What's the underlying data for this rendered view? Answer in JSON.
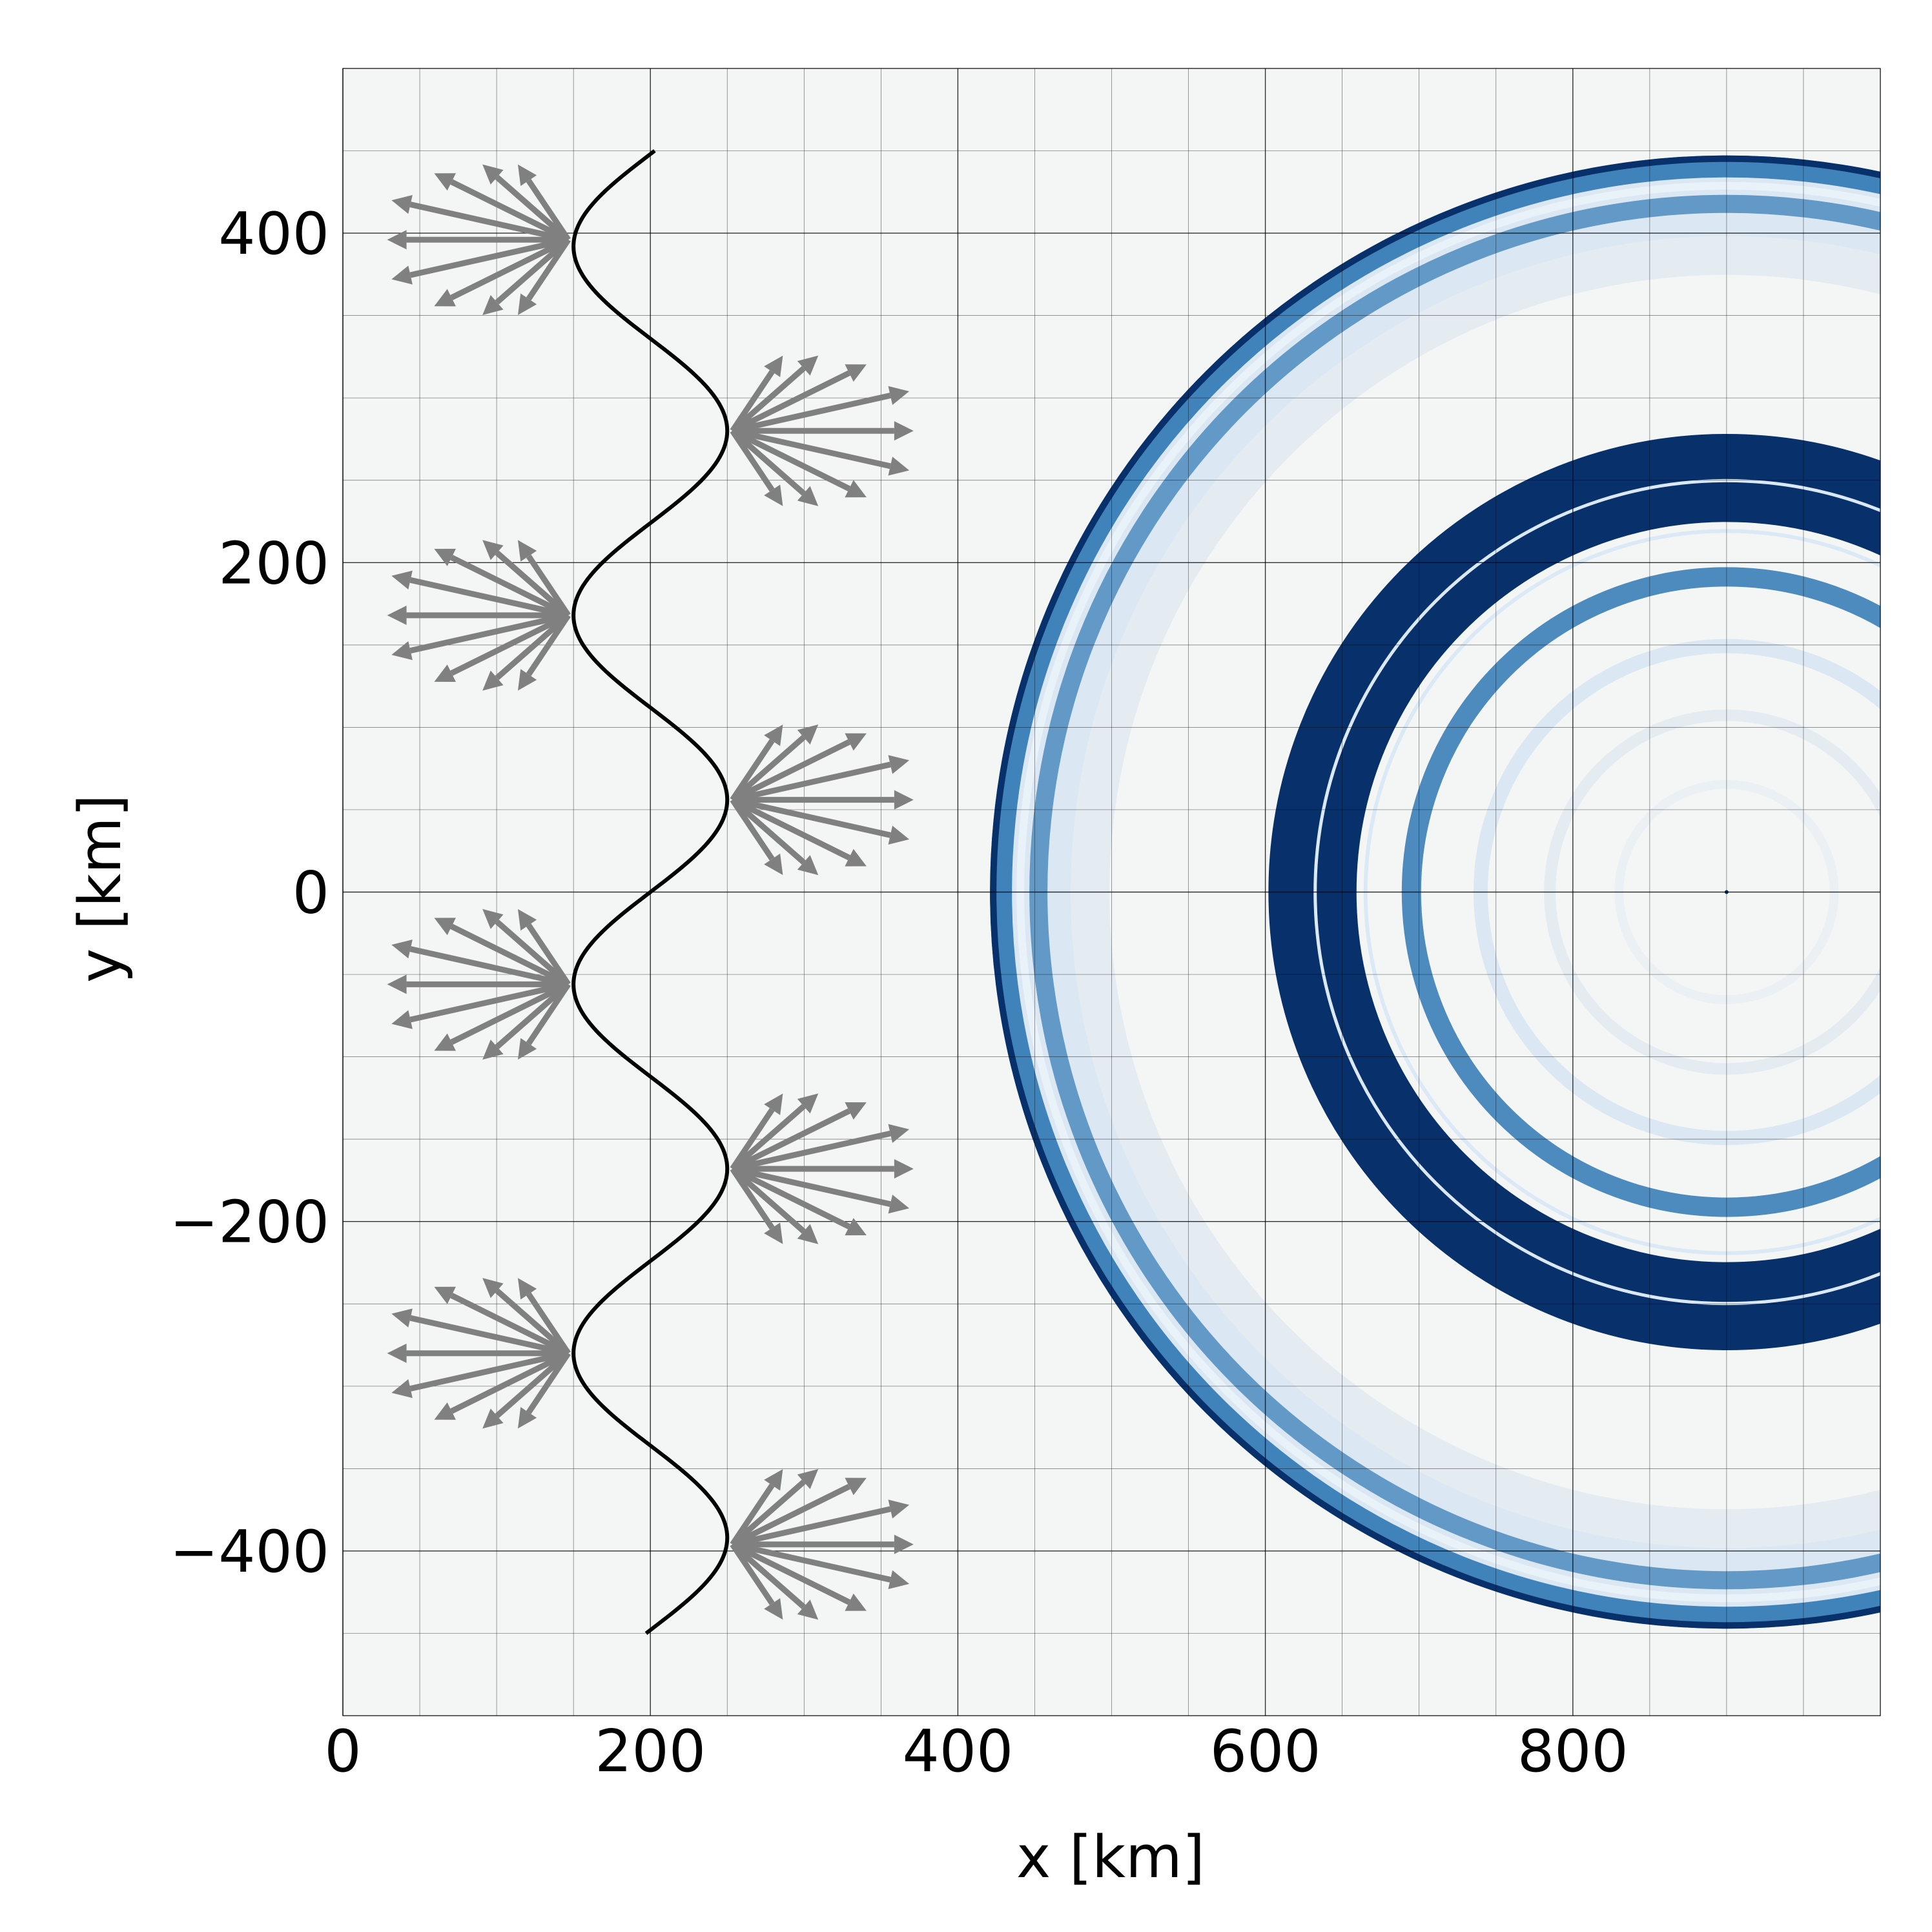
{
  "chart_data": {
    "type": "heatmap",
    "xlabel": "x [km]",
    "ylabel": "y [km]",
    "xlim": [
      0,
      1000
    ],
    "ylim": [
      -500,
      500
    ],
    "x_ticks": [
      0,
      200,
      400,
      600,
      800
    ],
    "y_ticks": [
      -400,
      -200,
      0,
      200,
      400
    ],
    "x_tick_labels": [
      "0",
      "200",
      "400",
      "600",
      "800"
    ],
    "y_tick_labels": [
      "−400",
      "−200",
      "0",
      "200",
      "400"
    ],
    "grid": true,
    "minor_grid_step": 50,
    "colormap": "Blues",
    "background_color": "#f4f6f5",
    "source": {
      "center": [
        900,
        0
      ],
      "outer_ring_radius": 477,
      "saturated_annulus_radii": [
        255,
        298
      ],
      "inner_ring_radii": [
        205,
        160,
        115,
        70
      ]
    },
    "curve": {
      "type": "sinusoid",
      "x_center": 200,
      "amplitude": 50,
      "period": 224,
      "y_range": [
        -450,
        450
      ],
      "phase_crest_y": 56
    },
    "arrow_fans": [
      {
        "vertex": [
          150,
          396
        ],
        "direction": "left"
      },
      {
        "vertex": [
          250,
          280
        ],
        "direction": "right"
      },
      {
        "vertex": [
          150,
          168
        ],
        "direction": "left"
      },
      {
        "vertex": [
          250,
          56
        ],
        "direction": "right"
      },
      {
        "vertex": [
          150,
          -56
        ],
        "direction": "left"
      },
      {
        "vertex": [
          250,
          -168
        ],
        "direction": "right"
      },
      {
        "vertex": [
          150,
          -280
        ],
        "direction": "left"
      },
      {
        "vertex": [
          250,
          -396
        ],
        "direction": "right"
      }
    ],
    "colors": {
      "curve": "#000000",
      "arrows": "#808080",
      "ring_dark": "#08306b",
      "ring_mid": "#2f78b5",
      "ring_light": "#c6dbef",
      "grid_major": "#000000"
    }
  }
}
